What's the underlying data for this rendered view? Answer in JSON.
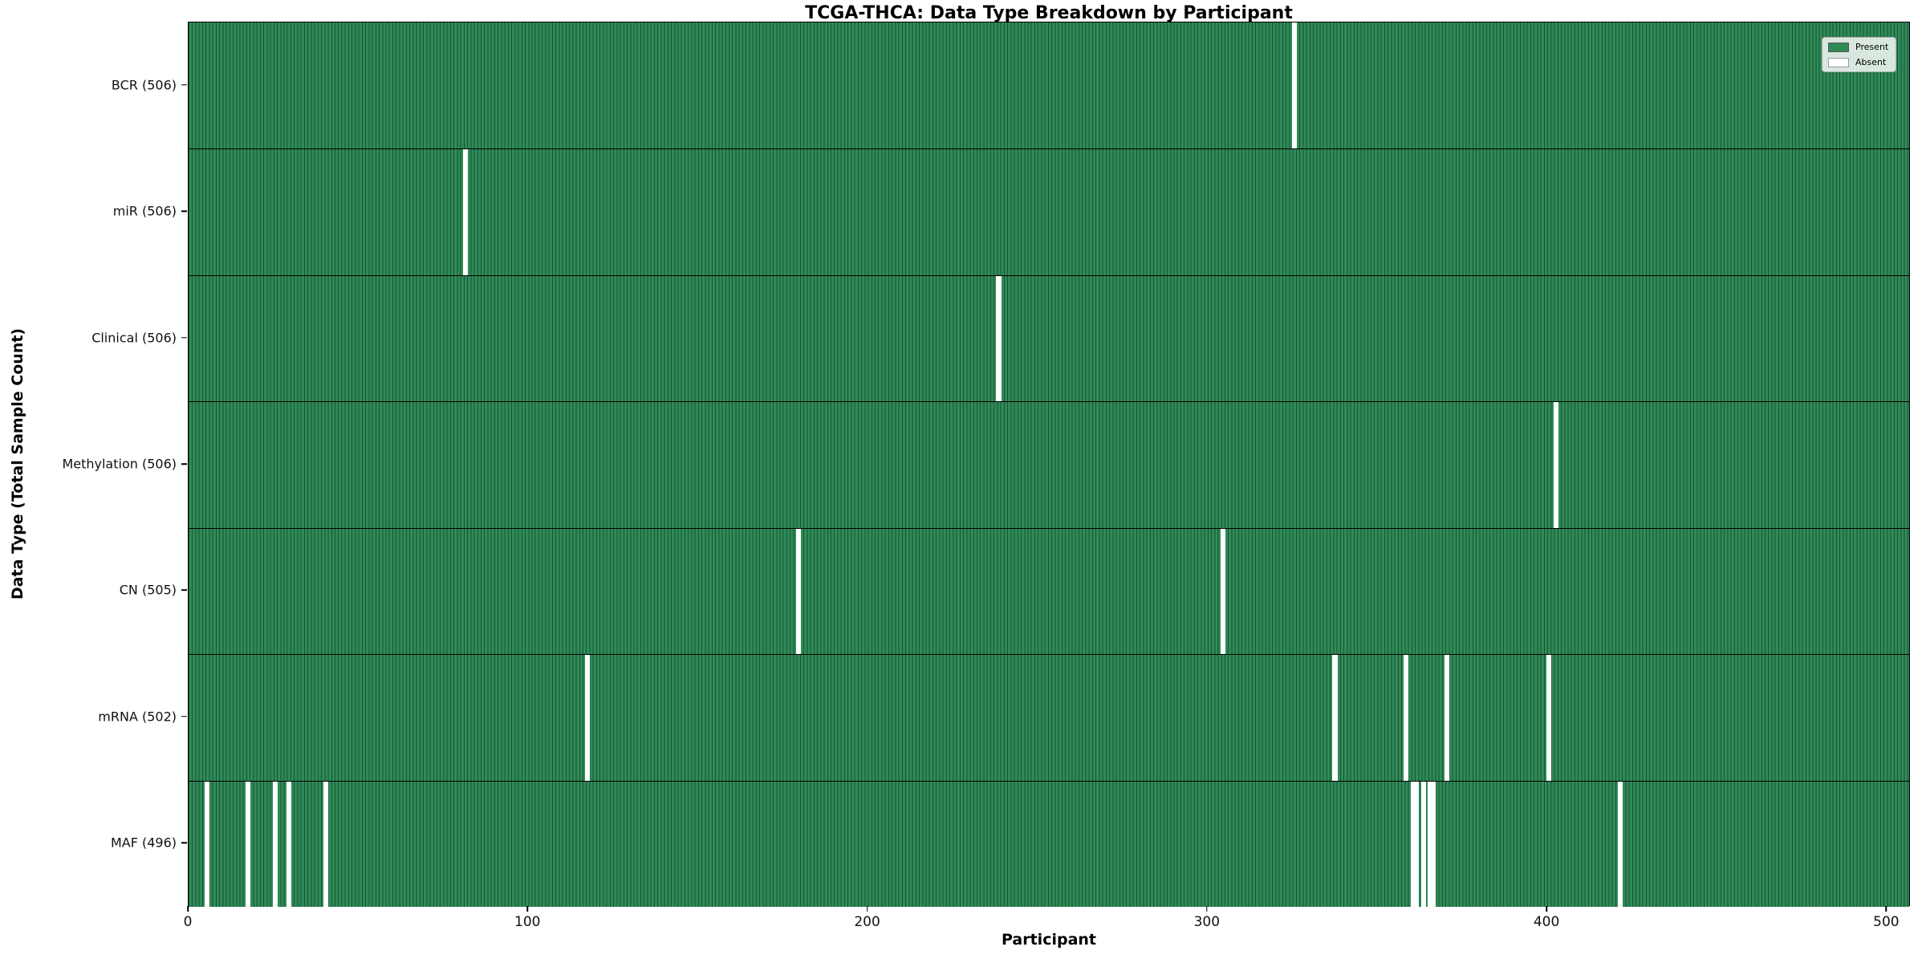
{
  "figure": {
    "title": "TCGA-THCA: Data Type Breakdown by Participant",
    "xlabel": "Participant",
    "ylabel": "Data Type (Total Sample Count)"
  },
  "legend": {
    "items": [
      {
        "label": "Present",
        "color": "#2e8b57"
      },
      {
        "label": "Absent",
        "color": "#ffffff"
      }
    ]
  },
  "chart_data": {
    "type": "heatmap",
    "title": "TCGA-THCA: Data Type Breakdown by Participant",
    "xlabel": "Participant",
    "ylabel": "Data Type (Total Sample Count)",
    "legend_position": "upper right",
    "grid": false,
    "n_participants": 507,
    "x_ticks": [
      0,
      100,
      200,
      300,
      400,
      500
    ],
    "xlim": [
      0,
      507
    ],
    "colors": {
      "present": "#2e8b57",
      "bar_edge": "#1c5134",
      "absent": "#ffffff"
    },
    "rows": [
      {
        "label": "BCR (506)",
        "data_type": "BCR",
        "total": 506,
        "absent_participants": [
          325
        ]
      },
      {
        "label": "miR (506)",
        "data_type": "miR",
        "total": 506,
        "absent_participants": [
          81
        ]
      },
      {
        "label": "Clinical (506)",
        "data_type": "Clinical",
        "total": 506,
        "absent_participants": [
          238
        ]
      },
      {
        "label": "Methylation (506)",
        "data_type": "Methylation",
        "total": 506,
        "absent_participants": [
          402
        ]
      },
      {
        "label": "CN (505)",
        "data_type": "CN",
        "total": 505,
        "absent_participants": [
          179,
          304
        ]
      },
      {
        "label": "mRNA (502)",
        "data_type": "mRNA",
        "total": 502,
        "absent_participants": [
          117,
          337,
          358,
          370,
          400
        ]
      },
      {
        "label": "MAF (496)",
        "data_type": "MAF",
        "total": 496,
        "absent_participants": [
          5,
          17,
          25,
          29,
          40,
          360,
          361,
          363,
          365,
          366,
          421
        ]
      }
    ]
  }
}
